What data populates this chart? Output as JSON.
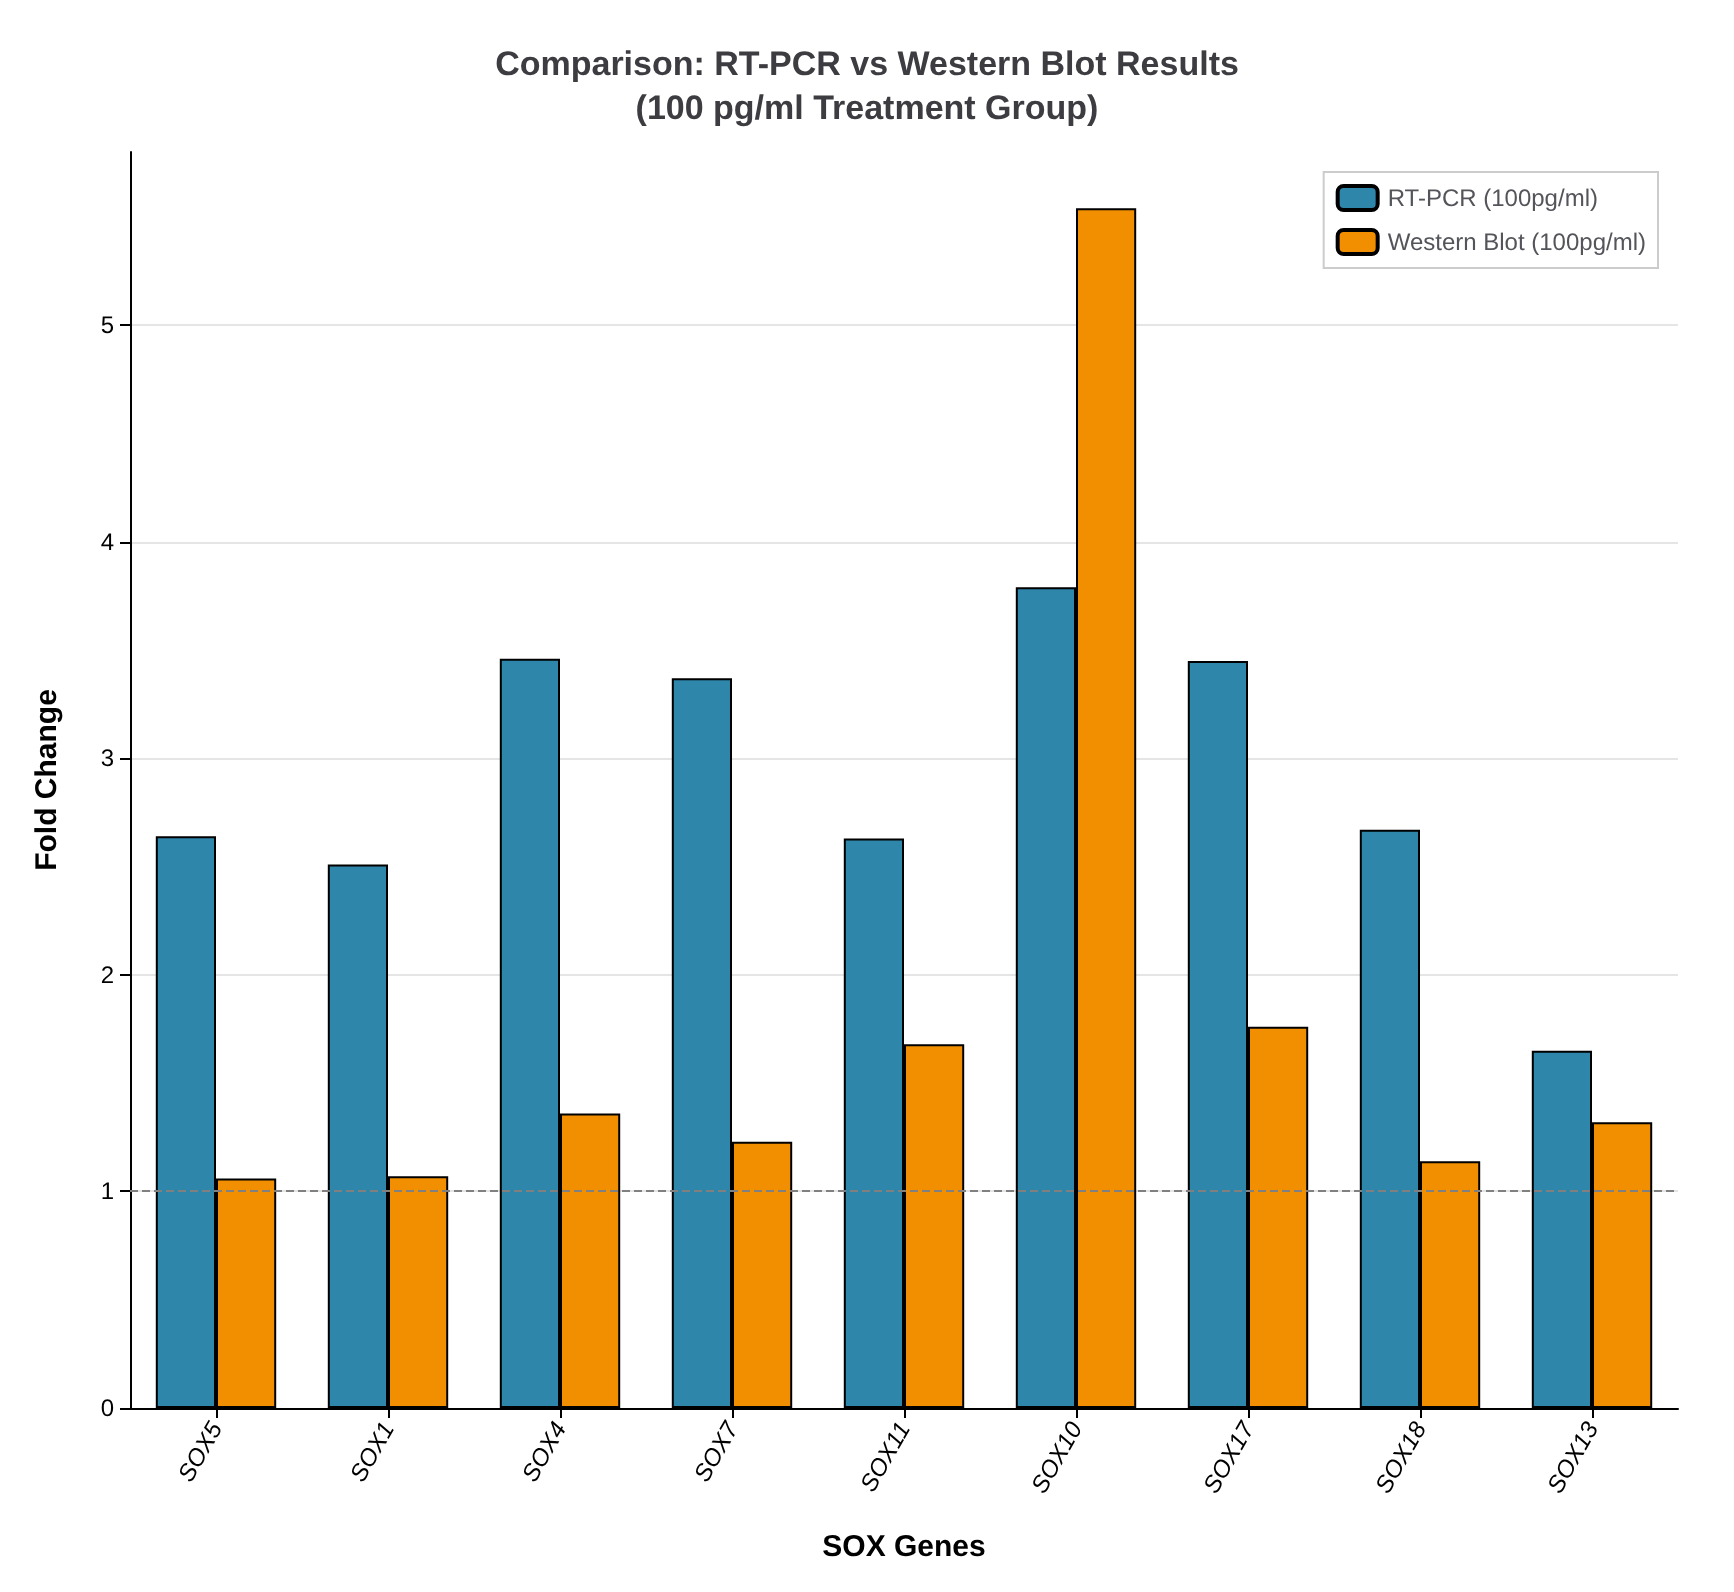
{
  "chart_data": {
    "type": "bar",
    "title": "Comparison: RT-PCR vs Western Blot Results\n(100 pg/ml Treatment Group)",
    "xlabel": "SOX Genes",
    "ylabel": "Fold Change",
    "categories": [
      "SOX5",
      "SOX1",
      "SOX4",
      "SOX7",
      "SOX11",
      "SOX10",
      "SOX17",
      "SOX18",
      "SOX13"
    ],
    "series": [
      {
        "name": "RT-PCR (100pg/ml)",
        "color": "#2e86ab",
        "values": [
          2.64,
          2.51,
          3.46,
          3.37,
          2.63,
          3.79,
          3.45,
          2.67,
          1.65
        ]
      },
      {
        "name": "Western Blot (100pg/ml)",
        "color": "#f18f01",
        "values": [
          1.06,
          1.07,
          1.36,
          1.23,
          1.68,
          5.54,
          1.76,
          1.14,
          1.32
        ]
      }
    ],
    "ylim": [
      0,
      5.8
    ],
    "yticks": [
      0,
      1,
      2,
      3,
      4,
      5
    ],
    "grid": "y",
    "legend": "top right",
    "ref_lines": [
      {
        "axis": "y",
        "value": 1,
        "label": null,
        "color": "#808080",
        "line_style": "dashed"
      }
    ]
  }
}
